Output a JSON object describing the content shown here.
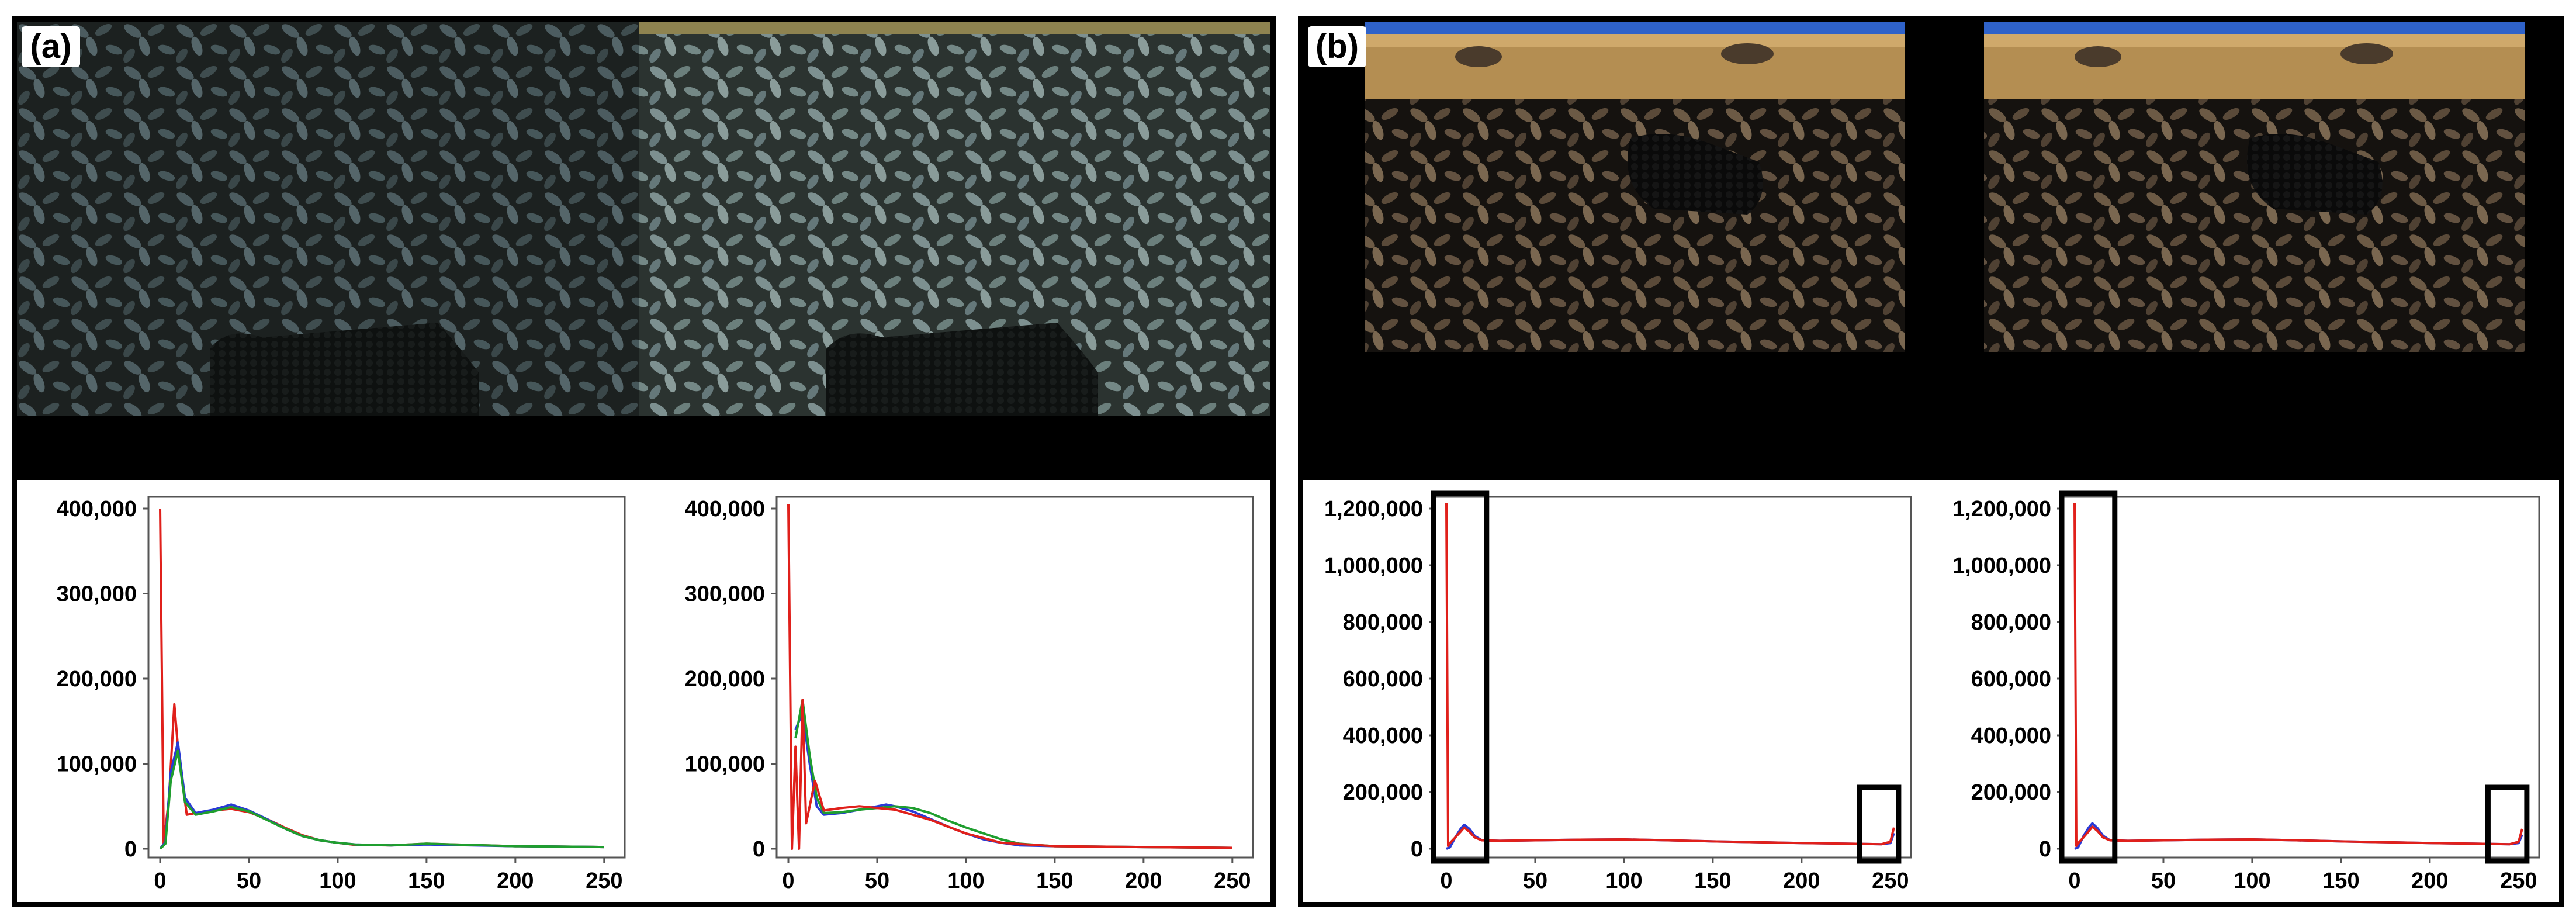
{
  "panels": [
    {
      "label": "(a)",
      "photos": [
        "honeybee-frame-original",
        "honeybee-frame-enhanced"
      ]
    },
    {
      "label": "(b)",
      "photos": [
        "honeybee-frame-cropped-original",
        "honeybee-frame-cropped-enhanced"
      ]
    }
  ],
  "colors": {
    "red": "#e0201b",
    "green": "#1f9e2f",
    "blue": "#2a3ad6",
    "frame": "#000000"
  },
  "chart_data": [
    {
      "type": "line",
      "xlim": [
        0,
        255
      ],
      "ylim": [
        0,
        400000
      ],
      "x_ticks": [
        "0",
        "50",
        "100",
        "150",
        "200",
        "250"
      ],
      "y_ticks": [
        "0",
        "100,000",
        "200,000",
        "300,000",
        "400,000"
      ],
      "grid": false,
      "series": [
        {
          "color": "#e0201b",
          "x": [
            0,
            2,
            5,
            8,
            10,
            15,
            20,
            30,
            40,
            50,
            60,
            70,
            80,
            90,
            100,
            110,
            130,
            150,
            200,
            250
          ],
          "y": [
            400000,
            5000,
            60000,
            170000,
            120000,
            40000,
            42000,
            45000,
            47000,
            43000,
            35000,
            25000,
            16000,
            10000,
            7000,
            4500,
            4000,
            6000,
            3000,
            2000
          ]
        },
        {
          "color": "#2a3ad6",
          "x": [
            0,
            3,
            6,
            10,
            14,
            20,
            30,
            40,
            50,
            60,
            70,
            80,
            90,
            100,
            110,
            130,
            150,
            200,
            250
          ],
          "y": [
            0,
            8000,
            90000,
            125000,
            60000,
            42000,
            46000,
            52000,
            45000,
            35000,
            24000,
            15000,
            10000,
            7000,
            5000,
            4000,
            5000,
            3000,
            2000
          ]
        },
        {
          "color": "#1f9e2f",
          "x": [
            0,
            3,
            6,
            10,
            14,
            20,
            30,
            40,
            50,
            60,
            70,
            80,
            90,
            100,
            110,
            130,
            150,
            200,
            250
          ],
          "y": [
            0,
            6000,
            80000,
            115000,
            55000,
            40000,
            44000,
            49000,
            44000,
            34000,
            24000,
            15000,
            10000,
            7000,
            5000,
            4000,
            6000,
            3000,
            2000
          ]
        }
      ]
    },
    {
      "type": "line",
      "xlim": [
        0,
        255
      ],
      "ylim": [
        0,
        400000
      ],
      "x_ticks": [
        "0",
        "50",
        "100",
        "150",
        "200",
        "250"
      ],
      "y_ticks": [
        "0",
        "100,000",
        "200,000",
        "300,000",
        "400,000"
      ],
      "grid": false,
      "series": [
        {
          "color": "#2a3ad6",
          "x": [
            4,
            8,
            12,
            16,
            20,
            30,
            40,
            50,
            55,
            60,
            70,
            80,
            90,
            100,
            110,
            120,
            130,
            150,
            200,
            250
          ],
          "y": [
            140000,
            160000,
            100000,
            50000,
            40000,
            42000,
            46000,
            50000,
            52000,
            50000,
            44000,
            35000,
            26000,
            18000,
            11000,
            7000,
            4000,
            3000,
            2000,
            1000
          ]
        },
        {
          "color": "#1f9e2f",
          "x": [
            4,
            8,
            12,
            16,
            20,
            30,
            40,
            50,
            60,
            70,
            80,
            90,
            100,
            110,
            120,
            130,
            150,
            200,
            250
          ],
          "y": [
            130000,
            175000,
            110000,
            60000,
            42000,
            43000,
            46000,
            48000,
            50000,
            48000,
            42000,
            33000,
            25000,
            18000,
            11000,
            6000,
            3000,
            2000,
            1000
          ]
        },
        {
          "color": "#e0201b",
          "x": [
            0,
            2,
            4,
            6,
            8,
            10,
            15,
            20,
            30,
            40,
            50,
            60,
            70,
            80,
            90,
            100,
            120,
            150,
            200,
            250
          ],
          "y": [
            405000,
            0,
            120000,
            0,
            175000,
            30000,
            80000,
            45000,
            48000,
            50000,
            48000,
            46000,
            40000,
            34000,
            26000,
            18000,
            7000,
            3000,
            2000,
            1000
          ]
        }
      ]
    },
    {
      "type": "line",
      "xlim": [
        0,
        255
      ],
      "ylim": [
        0,
        1200000
      ],
      "x_ticks": [
        "0",
        "50",
        "100",
        "150",
        "200",
        "250"
      ],
      "y_ticks": [
        "0",
        "200,000",
        "400,000",
        "600,000",
        "800,000",
        "1,000,000",
        "1,200,000"
      ],
      "grid": false,
      "series": [
        {
          "color": "#2a3ad6",
          "x": [
            0,
            2,
            5,
            8,
            10,
            13,
            16,
            20,
            30,
            50,
            75,
            100,
            125,
            150,
            175,
            200,
            225,
            245,
            250,
            252
          ],
          "y": [
            0,
            5000,
            40000,
            70000,
            85000,
            70000,
            45000,
            30000,
            28000,
            30000,
            32000,
            33000,
            30000,
            26000,
            23000,
            20000,
            18000,
            16000,
            20000,
            55000
          ]
        },
        {
          "color": "#e0201b",
          "x": [
            0,
            1,
            2,
            5,
            8,
            10,
            13,
            16,
            20,
            30,
            50,
            75,
            100,
            125,
            150,
            175,
            200,
            225,
            245,
            250,
            252
          ],
          "y": [
            1220000,
            10000,
            20000,
            40000,
            60000,
            75000,
            60000,
            40000,
            30000,
            28000,
            30000,
            32000,
            33000,
            30000,
            26000,
            23000,
            20000,
            18000,
            16000,
            25000,
            75000
          ]
        }
      ]
    },
    {
      "type": "line",
      "xlim": [
        0,
        255
      ],
      "ylim": [
        0,
        1200000
      ],
      "x_ticks": [
        "0",
        "50",
        "100",
        "150",
        "200",
        "250"
      ],
      "y_ticks": [
        "0",
        "200,000",
        "400,000",
        "600,000",
        "800,000",
        "1,000,000",
        "1,200,000"
      ],
      "grid": false,
      "series": [
        {
          "color": "#2a3ad6",
          "x": [
            0,
            2,
            5,
            8,
            10,
            13,
            16,
            20,
            30,
            50,
            75,
            100,
            125,
            150,
            175,
            200,
            225,
            245,
            250,
            252
          ],
          "y": [
            0,
            5000,
            45000,
            75000,
            90000,
            72000,
            46000,
            30000,
            28000,
            30000,
            32000,
            33000,
            30000,
            26000,
            23000,
            20000,
            18000,
            16000,
            20000,
            50000
          ]
        },
        {
          "color": "#e0201b",
          "x": [
            0,
            1,
            2,
            5,
            8,
            10,
            13,
            16,
            20,
            30,
            50,
            75,
            100,
            125,
            150,
            175,
            200,
            225,
            245,
            250,
            252
          ],
          "y": [
            1220000,
            10000,
            20000,
            40000,
            62000,
            78000,
            62000,
            40000,
            30000,
            28000,
            30000,
            32000,
            33000,
            30000,
            26000,
            23000,
            20000,
            18000,
            16000,
            25000,
            70000
          ]
        }
      ]
    }
  ]
}
